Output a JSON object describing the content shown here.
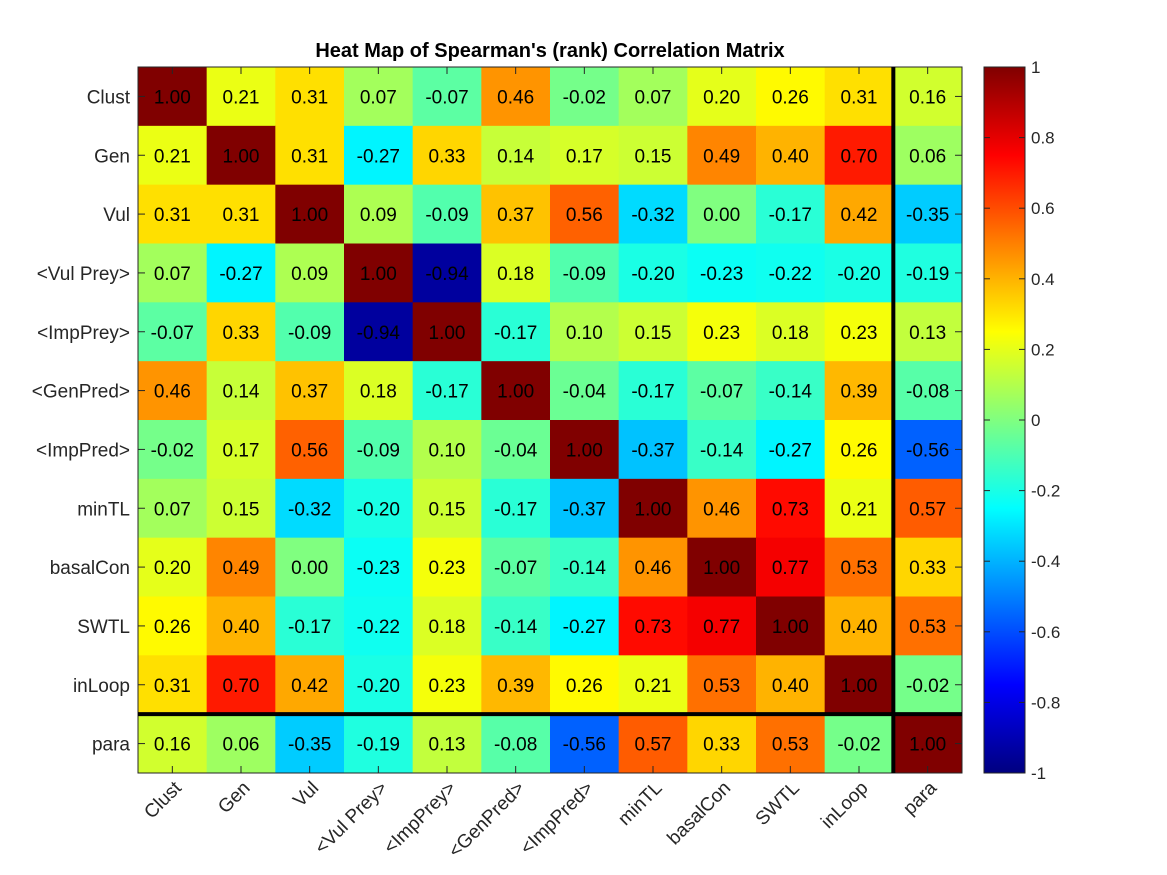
{
  "chart_data": {
    "type": "heatmap",
    "title": "Heat Map of Spearman's (rank) Correlation Matrix",
    "xlabel": "",
    "ylabel": "",
    "labels": [
      "Clust",
      "Gen",
      "Vul",
      "<Vul Prey>",
      "<ImpPrey>",
      "<GenPred>",
      "<ImpPred>",
      "minTL",
      "basalCon",
      "SWTL",
      "inLoop",
      "para"
    ],
    "values": [
      [
        1.0,
        0.21,
        0.31,
        0.07,
        -0.07,
        0.46,
        -0.02,
        0.07,
        0.2,
        0.26,
        0.31,
        0.16
      ],
      [
        0.21,
        1.0,
        0.31,
        -0.27,
        0.33,
        0.14,
        0.17,
        0.15,
        0.49,
        0.4,
        0.7,
        0.06
      ],
      [
        0.31,
        0.31,
        1.0,
        0.09,
        -0.09,
        0.37,
        0.56,
        -0.32,
        0.0,
        -0.17,
        0.42,
        -0.35
      ],
      [
        0.07,
        -0.27,
        0.09,
        1.0,
        -0.94,
        0.18,
        -0.09,
        -0.2,
        -0.23,
        -0.22,
        -0.2,
        -0.19
      ],
      [
        -0.07,
        0.33,
        -0.09,
        -0.94,
        1.0,
        -0.17,
        0.1,
        0.15,
        0.23,
        0.18,
        0.23,
        0.13
      ],
      [
        0.46,
        0.14,
        0.37,
        0.18,
        -0.17,
        1.0,
        -0.04,
        -0.17,
        -0.07,
        -0.14,
        0.39,
        -0.08
      ],
      [
        -0.02,
        0.17,
        0.56,
        -0.09,
        0.1,
        -0.04,
        1.0,
        -0.37,
        -0.14,
        -0.27,
        0.26,
        -0.56
      ],
      [
        0.07,
        0.15,
        -0.32,
        -0.2,
        0.15,
        -0.17,
        -0.37,
        1.0,
        0.46,
        0.73,
        0.21,
        0.57
      ],
      [
        0.2,
        0.49,
        0.0,
        -0.23,
        0.23,
        -0.07,
        -0.14,
        0.46,
        1.0,
        0.77,
        0.53,
        0.33
      ],
      [
        0.26,
        0.4,
        -0.17,
        -0.22,
        0.18,
        -0.14,
        -0.27,
        0.73,
        0.77,
        1.0,
        0.4,
        0.53
      ],
      [
        0.31,
        0.7,
        0.42,
        -0.2,
        0.23,
        0.39,
        0.26,
        0.21,
        0.53,
        0.4,
        1.0,
        -0.02
      ],
      [
        0.16,
        0.06,
        -0.35,
        -0.19,
        0.13,
        -0.08,
        -0.56,
        0.57,
        0.33,
        0.53,
        -0.02,
        1.0
      ]
    ],
    "colormap": "jet",
    "clim": [
      -1,
      1
    ],
    "colorbar_ticks": [
      "1",
      "0.8",
      "0.6",
      "0.4",
      "0.2",
      "0",
      "-0.2",
      "-0.4",
      "-0.6",
      "-0.8",
      "-1"
    ],
    "colorbar_tick_values": [
      1,
      0.8,
      0.6,
      0.4,
      0.2,
      0,
      -0.2,
      -0.4,
      -0.6,
      -0.8,
      -1
    ],
    "separator_after_index": 10,
    "grid": false
  }
}
